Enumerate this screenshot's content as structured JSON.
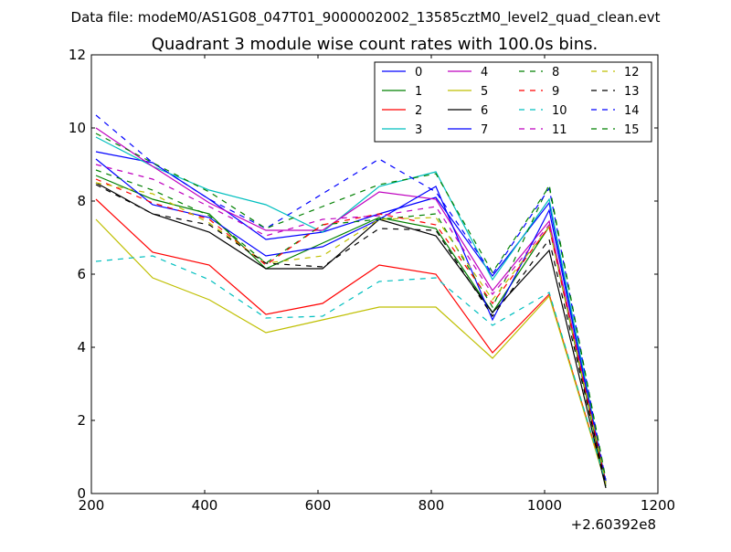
{
  "chart_data": {
    "type": "line",
    "suptitle": "Data file: modeM0/AS1G08_047T01_9000002002_13585cztM0_level2_quad_clean.evt",
    "title": "Quadrant 3 module wise count rates with 100.0s bins.",
    "xlabel": "",
    "ylabel": "",
    "x_offset_label": "+2.60392e8",
    "xlim": [
      200,
      1200
    ],
    "ylim": [
      0,
      12
    ],
    "x_ticks": [
      200,
      400,
      600,
      800,
      1000,
      1200
    ],
    "y_ticks": [
      0,
      2,
      4,
      6,
      8,
      10,
      12
    ],
    "grid": false,
    "legend_position": "top-right",
    "x": [
      208,
      308,
      408,
      508,
      608,
      708,
      808,
      908,
      1008,
      1108
    ],
    "series": [
      {
        "name": "0",
        "color": "#0000ff",
        "style": "solid",
        "values": [
          9.35,
          9.05,
          8.05,
          6.95,
          7.15,
          7.65,
          8.1,
          5.95,
          7.95,
          0.25
        ]
      },
      {
        "name": "1",
        "color": "#008000",
        "style": "solid",
        "values": [
          8.7,
          8.05,
          7.65,
          6.15,
          6.85,
          7.55,
          7.25,
          4.95,
          7.3,
          0.2
        ]
      },
      {
        "name": "2",
        "color": "#ff0000",
        "style": "solid",
        "values": [
          8.05,
          6.6,
          6.25,
          4.9,
          5.2,
          6.25,
          6.0,
          3.85,
          5.45,
          0.3
        ]
      },
      {
        "name": "3",
        "color": "#00bfbf",
        "style": "solid",
        "values": [
          9.75,
          8.95,
          8.3,
          7.9,
          7.15,
          8.4,
          8.8,
          5.85,
          8.05,
          0.3
        ]
      },
      {
        "name": "4",
        "color": "#bf00bf",
        "style": "solid",
        "values": [
          10.0,
          8.95,
          7.95,
          7.2,
          7.2,
          8.25,
          8.05,
          5.55,
          7.45,
          0.3
        ]
      },
      {
        "name": "5",
        "color": "#bfbf00",
        "style": "solid",
        "values": [
          7.5,
          5.9,
          5.3,
          4.4,
          4.75,
          5.1,
          5.1,
          3.7,
          5.4,
          0.25
        ]
      },
      {
        "name": "6",
        "color": "#000000",
        "style": "solid",
        "values": [
          8.5,
          7.65,
          7.15,
          6.15,
          6.15,
          7.5,
          7.05,
          4.95,
          6.65,
          0.15
        ]
      },
      {
        "name": "7",
        "color": "#0000ff",
        "style": "solid",
        "values": [
          9.15,
          7.9,
          7.55,
          6.5,
          6.75,
          7.5,
          8.4,
          4.75,
          7.75,
          0.3
        ]
      },
      {
        "name": "8",
        "color": "#008000",
        "style": "dashed",
        "values": [
          8.85,
          8.3,
          7.6,
          6.3,
          7.35,
          7.5,
          7.65,
          5.1,
          8.45,
          0.35
        ]
      },
      {
        "name": "9",
        "color": "#ff0000",
        "style": "dashed",
        "values": [
          8.6,
          7.95,
          7.5,
          6.25,
          7.35,
          7.65,
          7.35,
          5.2,
          7.3,
          0.3
        ]
      },
      {
        "name": "10",
        "color": "#00bfbf",
        "style": "dashed",
        "values": [
          6.35,
          6.5,
          5.85,
          4.8,
          4.85,
          5.8,
          5.9,
          4.6,
          5.5,
          0.3
        ]
      },
      {
        "name": "11",
        "color": "#bf00bf",
        "style": "dashed",
        "values": [
          9.0,
          8.6,
          7.85,
          7.05,
          7.5,
          7.6,
          7.85,
          5.45,
          7.35,
          0.35
        ]
      },
      {
        "name": "12",
        "color": "#bfbf00",
        "style": "dashed",
        "values": [
          8.5,
          8.2,
          7.4,
          6.3,
          6.5,
          7.5,
          7.55,
          5.3,
          7.3,
          0.3
        ]
      },
      {
        "name": "13",
        "color": "#000000",
        "style": "dashed",
        "values": [
          8.45,
          7.65,
          7.35,
          6.3,
          6.2,
          7.25,
          7.2,
          4.85,
          6.95,
          0.25
        ]
      },
      {
        "name": "14",
        "color": "#0000ff",
        "style": "dashed",
        "values": [
          10.35,
          9.05,
          8.05,
          7.25,
          8.2,
          9.15,
          8.25,
          6.0,
          8.35,
          0.35
        ]
      },
      {
        "name": "15",
        "color": "#008000",
        "style": "dashed",
        "values": [
          9.85,
          9.05,
          8.25,
          7.25,
          7.85,
          8.45,
          8.75,
          6.05,
          8.4,
          0.4
        ]
      }
    ]
  }
}
